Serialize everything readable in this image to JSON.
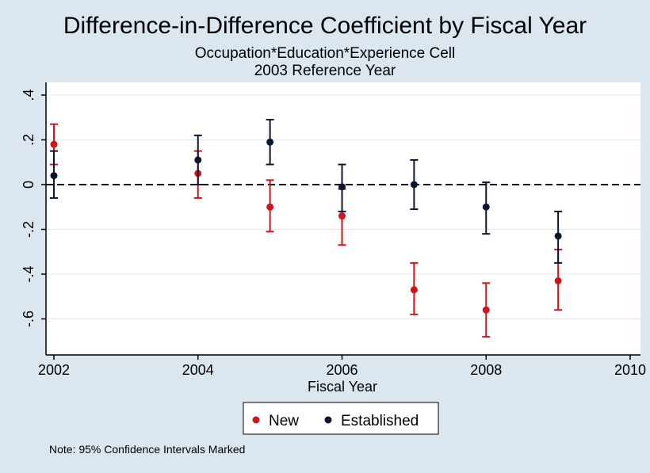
{
  "chart_data": {
    "type": "scatter",
    "title": "Difference-in-Difference Coefficient by Fiscal Year",
    "subtitle_lines": [
      "Occupation*Education*Experience Cell",
      "2003 Reference Year"
    ],
    "xlabel": "Fiscal Year",
    "ylabel": "",
    "xlim": [
      2002,
      2010
    ],
    "ylim": [
      -0.72,
      0.42
    ],
    "x_ticks": [
      2002,
      2004,
      2006,
      2008,
      2010
    ],
    "x_tick_labels": [
      "2002",
      "2004",
      "2006",
      "2008",
      "2010"
    ],
    "y_ticks": [
      0.4,
      0.2,
      0,
      -0.2,
      -0.4,
      -0.6
    ],
    "y_tick_labels": [
      ".4",
      ".2",
      "0",
      "-.2",
      "-.4",
      "-.6"
    ],
    "reference_line": 0,
    "grid": true,
    "legend_position": "bottom",
    "series": [
      {
        "name": "New",
        "color": "#d0151b",
        "points": [
          {
            "x": 2002,
            "y": 0.18,
            "lo": 0.09,
            "hi": 0.27
          },
          {
            "x": 2004,
            "y": 0.05,
            "lo": -0.06,
            "hi": 0.15
          },
          {
            "x": 2005,
            "y": -0.1,
            "lo": -0.21,
            "hi": 0.02
          },
          {
            "x": 2006,
            "y": -0.14,
            "lo": -0.27,
            "hi": -0.02
          },
          {
            "x": 2007,
            "y": -0.47,
            "lo": -0.58,
            "hi": -0.35
          },
          {
            "x": 2008,
            "y": -0.56,
            "lo": -0.68,
            "hi": -0.44
          },
          {
            "x": 2009,
            "y": -0.43,
            "lo": -0.56,
            "hi": -0.29
          }
        ]
      },
      {
        "name": "Established",
        "color": "#0d1631",
        "points": [
          {
            "x": 2002,
            "y": 0.04,
            "lo": -0.06,
            "hi": 0.15
          },
          {
            "x": 2004,
            "y": 0.11,
            "lo": 0.0,
            "hi": 0.22
          },
          {
            "x": 2005,
            "y": 0.19,
            "lo": 0.09,
            "hi": 0.29
          },
          {
            "x": 2006,
            "y": -0.01,
            "lo": -0.12,
            "hi": 0.09
          },
          {
            "x": 2007,
            "y": 0.0,
            "lo": -0.11,
            "hi": 0.11
          },
          {
            "x": 2008,
            "y": -0.1,
            "lo": -0.22,
            "hi": 0.01
          },
          {
            "x": 2009,
            "y": -0.23,
            "lo": -0.35,
            "hi": -0.12
          }
        ]
      }
    ]
  },
  "note": "Note: 95% Confidence Intervals Marked"
}
